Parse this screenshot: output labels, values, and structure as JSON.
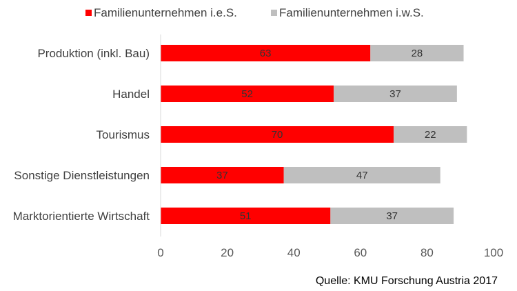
{
  "chart_data": {
    "type": "bar",
    "orientation": "horizontal",
    "stacked": true,
    "categories": [
      "Produktion (inkl. Bau)",
      "Handel",
      "Tourismus",
      "Sonstige Dienstleistungen",
      "Marktorientierte Wirtschaft"
    ],
    "series": [
      {
        "name": "Familienunternehmen i.e.S.",
        "color": "#ff0000",
        "values": [
          63,
          52,
          70,
          37,
          51
        ]
      },
      {
        "name": "Familienunternehmen i.w.S.",
        "color": "#bfbfbf",
        "values": [
          28,
          37,
          22,
          47,
          37
        ]
      }
    ],
    "xlim": [
      0,
      100
    ],
    "xticks": [
      "0",
      "20",
      "40",
      "60",
      "80",
      "100"
    ],
    "legend_position": "top",
    "grid": false,
    "source": "Quelle: KMU Forschung Austria 2017"
  }
}
